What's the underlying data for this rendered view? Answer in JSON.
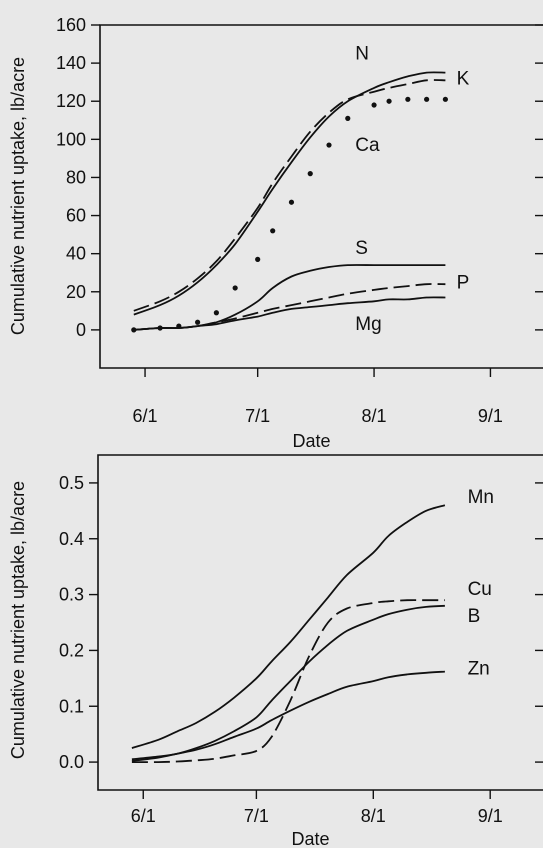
{
  "chart_data": [
    {
      "type": "line",
      "title": "",
      "xlabel": "Date",
      "ylabel": "Cumulative nutrient uptake, lb/acre",
      "xlim": [
        "5/20",
        "9/15"
      ],
      "ylim": [
        -20,
        160
      ],
      "x_ticks": [
        {
          "date": "6/1",
          "label": "6/1"
        },
        {
          "date": "7/1",
          "label": "7/1"
        },
        {
          "date": "8/1",
          "label": "8/1"
        },
        {
          "date": "9/1",
          "label": "9/1"
        }
      ],
      "y_ticks": [
        0,
        20,
        40,
        60,
        80,
        100,
        120,
        140,
        160
      ],
      "grid": false,
      "series": [
        {
          "name": "N",
          "style": "solid",
          "x": [
            "5/29",
            "6/5",
            "6/10",
            "6/15",
            "6/20",
            "6/25",
            "7/1",
            "7/5",
            "7/10",
            "7/15",
            "7/20",
            "7/25",
            "8/1",
            "8/5",
            "8/10",
            "8/15",
            "8/20"
          ],
          "y": [
            8,
            13,
            18,
            25,
            34,
            45,
            62,
            74,
            88,
            101,
            112,
            120,
            127,
            130,
            133,
            135,
            135
          ]
        },
        {
          "name": "K",
          "style": "dashed",
          "x": [
            "5/29",
            "6/5",
            "6/10",
            "6/15",
            "6/20",
            "6/25",
            "7/1",
            "7/5",
            "7/10",
            "7/15",
            "7/20",
            "7/25",
            "8/1",
            "8/5",
            "8/10",
            "8/15",
            "8/20"
          ],
          "y": [
            10,
            15,
            20,
            27,
            36,
            48,
            64,
            77,
            91,
            104,
            114,
            121,
            125,
            127,
            129,
            131,
            131
          ]
        },
        {
          "name": "Ca",
          "style": "dotted",
          "x": [
            "5/29",
            "6/5",
            "6/10",
            "6/15",
            "6/20",
            "6/25",
            "7/1",
            "7/5",
            "7/10",
            "7/15",
            "7/20",
            "7/25",
            "8/1",
            "8/5",
            "8/10",
            "8/15",
            "8/20"
          ],
          "y": [
            0,
            1,
            2,
            4,
            9,
            22,
            37,
            52,
            67,
            82,
            97,
            111,
            118,
            120,
            121,
            121,
            121
          ]
        },
        {
          "name": "S",
          "style": "solid",
          "x": [
            "5/29",
            "6/5",
            "6/10",
            "6/15",
            "6/20",
            "6/25",
            "7/1",
            "7/5",
            "7/10",
            "7/15",
            "7/20",
            "7/25",
            "8/1",
            "8/5",
            "8/10",
            "8/15",
            "8/20"
          ],
          "y": [
            0,
            1,
            1,
            2,
            4,
            8,
            15,
            22,
            28,
            31,
            33,
            34,
            34,
            34,
            34,
            34,
            34
          ]
        },
        {
          "name": "P",
          "style": "dashed",
          "x": [
            "5/29",
            "6/5",
            "6/10",
            "6/15",
            "6/20",
            "6/25",
            "7/1",
            "7/5",
            "7/10",
            "7/15",
            "7/20",
            "7/25",
            "8/1",
            "8/5",
            "8/10",
            "8/15",
            "8/20"
          ],
          "y": [
            0,
            1,
            1,
            2,
            4,
            6,
            9,
            11,
            13,
            15,
            17,
            19,
            21,
            22,
            23,
            24,
            24
          ]
        },
        {
          "name": "Mg",
          "style": "solid",
          "x": [
            "5/29",
            "6/5",
            "6/10",
            "6/15",
            "6/20",
            "6/25",
            "7/1",
            "7/5",
            "7/10",
            "7/15",
            "7/20",
            "7/25",
            "8/1",
            "8/5",
            "8/10",
            "8/15",
            "8/20"
          ],
          "y": [
            0,
            1,
            1,
            2,
            3,
            5,
            7,
            9,
            11,
            12,
            13,
            14,
            15,
            16,
            16,
            17,
            17
          ]
        }
      ]
    },
    {
      "type": "line",
      "title": "",
      "xlabel": "Date",
      "ylabel": "Cumulative nutrient uptake, lb/acre",
      "xlim": [
        "5/20",
        "9/15"
      ],
      "ylim": [
        -0.05,
        0.55
      ],
      "x_ticks": [
        {
          "date": "6/1",
          "label": "6/1"
        },
        {
          "date": "7/1",
          "label": "7/1"
        },
        {
          "date": "8/1",
          "label": "8/1"
        },
        {
          "date": "9/1",
          "label": "9/1"
        }
      ],
      "y_ticks": [
        {
          "value": 0.0,
          "label": "0.0"
        },
        {
          "value": 0.1,
          "label": "0.1"
        },
        {
          "value": 0.2,
          "label": "0.2"
        },
        {
          "value": 0.3,
          "label": "0.3"
        },
        {
          "value": 0.4,
          "label": "0.4"
        },
        {
          "value": 0.5,
          "label": "0.5"
        }
      ],
      "grid": false,
      "series": [
        {
          "name": "Mn",
          "style": "solid",
          "x": [
            "5/29",
            "6/5",
            "6/10",
            "6/15",
            "6/20",
            "6/25",
            "7/1",
            "7/5",
            "7/10",
            "7/15",
            "7/20",
            "7/25",
            "8/1",
            "8/5",
            "8/10",
            "8/15",
            "8/20"
          ],
          "y": [
            0.025,
            0.04,
            0.055,
            0.07,
            0.09,
            0.115,
            0.15,
            0.18,
            0.215,
            0.255,
            0.295,
            0.335,
            0.375,
            0.405,
            0.43,
            0.45,
            0.46
          ]
        },
        {
          "name": "Cu",
          "style": "dashed",
          "x": [
            "5/29",
            "6/5",
            "6/10",
            "6/15",
            "6/20",
            "6/25",
            "7/1",
            "7/5",
            "7/10",
            "7/15",
            "7/20",
            "7/25",
            "8/1",
            "8/5",
            "8/10",
            "8/15",
            "8/20"
          ],
          "y": [
            0.0,
            0.0,
            0.001,
            0.003,
            0.006,
            0.012,
            0.02,
            0.045,
            0.11,
            0.19,
            0.25,
            0.275,
            0.285,
            0.288,
            0.29,
            0.29,
            0.29
          ]
        },
        {
          "name": "B",
          "style": "solid",
          "x": [
            "5/29",
            "6/5",
            "6/10",
            "6/15",
            "6/20",
            "6/25",
            "7/1",
            "7/5",
            "7/10",
            "7/15",
            "7/20",
            "7/25",
            "8/1",
            "8/5",
            "8/10",
            "8/15",
            "8/20"
          ],
          "y": [
            0.005,
            0.01,
            0.015,
            0.025,
            0.038,
            0.055,
            0.08,
            0.11,
            0.145,
            0.18,
            0.21,
            0.235,
            0.255,
            0.265,
            0.273,
            0.278,
            0.28
          ]
        },
        {
          "name": "Zn",
          "style": "solid",
          "x": [
            "5/29",
            "6/5",
            "6/10",
            "6/15",
            "6/20",
            "6/25",
            "7/1",
            "7/5",
            "7/10",
            "7/15",
            "7/20",
            "7/25",
            "8/1",
            "8/5",
            "8/10",
            "8/15",
            "8/20"
          ],
          "y": [
            0.002,
            0.008,
            0.015,
            0.022,
            0.032,
            0.045,
            0.06,
            0.075,
            0.092,
            0.108,
            0.122,
            0.135,
            0.145,
            0.152,
            0.157,
            0.16,
            0.162
          ]
        }
      ]
    }
  ]
}
